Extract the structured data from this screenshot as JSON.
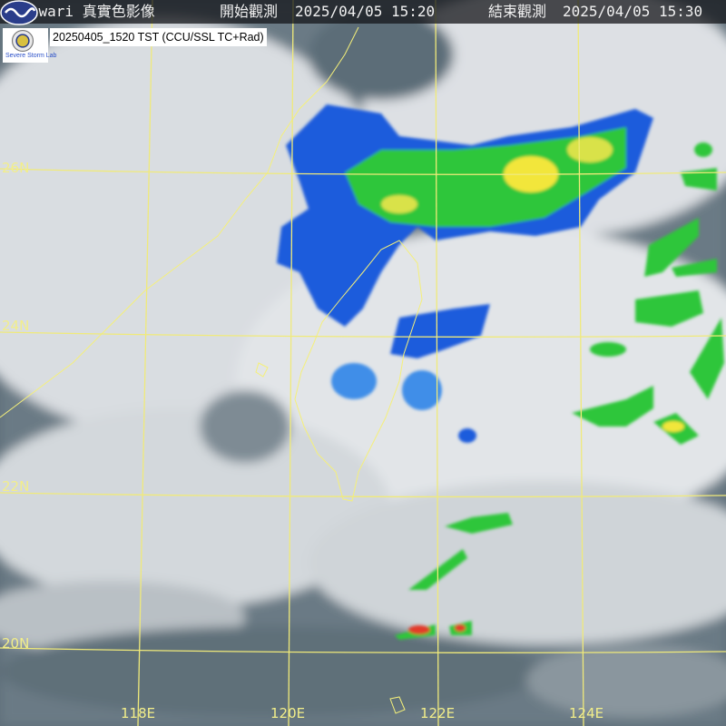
{
  "header": {
    "satellite_title": "Himawari 真實色影像",
    "start_label": "開始觀測",
    "start_time": "2025/04/05 15:20",
    "end_label": "結束觀測",
    "end_time": "2025/04/05 15:30"
  },
  "product_label": "20250405_1520 TST (CCU/SSL TC+Rad)",
  "lab_logo_text": "Severe Storm Lab",
  "latitude_labels": [
    "26N",
    "24N",
    "22N",
    "20N"
  ],
  "longitude_labels": [
    "118E",
    "120E",
    "122E",
    "124E"
  ],
  "colors": {
    "grid": "#f0ea7a",
    "coastline": "#f5f07a",
    "radar_light": "#1e5bdc",
    "radar_mid": "#2ec63a",
    "radar_high": "#f2e63a",
    "radar_extreme": "#e33a2a"
  },
  "icons": [
    "cwa-seal-icon",
    "ssl-lab-logo",
    "agency-emblem-icon"
  ]
}
